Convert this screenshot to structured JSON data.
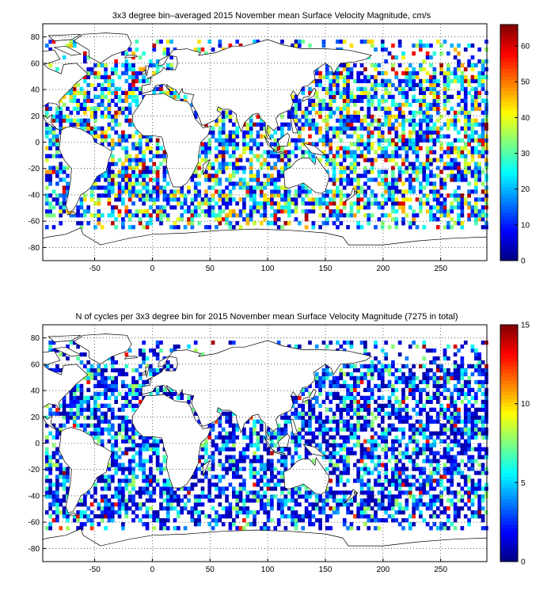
{
  "figure": {
    "panels": [
      {
        "title": "3x3 degree bin–averaged 2015 November mean Surface Velocity Magnitude, cm/s",
        "colorbar": {
          "min": 0,
          "max": 66,
          "ticks": [
            "0",
            "10",
            "20",
            "30",
            "40",
            "50",
            "60"
          ],
          "tick_values": [
            0,
            10,
            20,
            30,
            40,
            50,
            60
          ]
        },
        "seed": 11
      },
      {
        "title": "N of cycles per 3x3 degree bin for 2015 November mean Surface Velocity Magnitude (7275 in total)",
        "colorbar": {
          "min": 0,
          "max": 15,
          "ticks": [
            "0",
            "5",
            "10",
            "15"
          ],
          "tick_values": [
            0,
            5,
            10,
            15
          ]
        },
        "seed": 29
      }
    ],
    "map": {
      "lon_range": [
        -95,
        290
      ],
      "lat_range": [
        -90,
        90
      ],
      "xticks": [
        "-50",
        "0",
        "50",
        "100",
        "150",
        "200",
        "250"
      ],
      "xtick_values": [
        -50,
        0,
        50,
        100,
        150,
        200,
        250
      ],
      "yticks": [
        "80",
        "60",
        "40",
        "20",
        "0",
        "-20",
        "-40",
        "-60",
        "-80"
      ],
      "ytick_values": [
        80,
        60,
        40,
        20,
        0,
        -20,
        -40,
        -60,
        -80
      ],
      "grid": "dotted",
      "colormap": "jet"
    }
  }
}
